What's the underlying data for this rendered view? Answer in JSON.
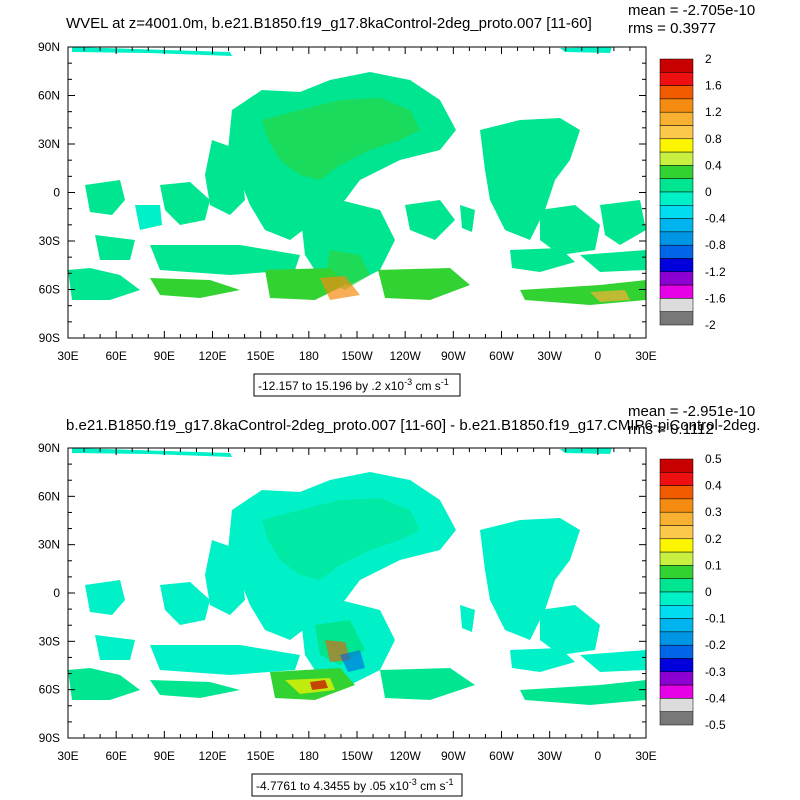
{
  "panels": [
    {
      "title": "WVEL at z=4001.0m, b.e21.B1850.f19_g17.8kaControl-2deg_proto.007 [11-60]",
      "mean_label": "mean = -2.705e-10",
      "rms_label": "rms = 0.3977",
      "range_label": "-12.157 to 15.196 by .2 x10",
      "range_exponent": "-3",
      "range_units": " cm s",
      "range_units_exponent": "-1",
      "colorbar": {
        "labels": [
          "2",
          "1.6",
          "1.2",
          "0.8",
          "0.4",
          "0",
          "-0.4",
          "-0.8",
          "-1.2",
          "-1.6",
          "-2"
        ],
        "colors": [
          "#c80000",
          "#ee1010",
          "#f25a00",
          "#f38c10",
          "#f8b030",
          "#fbc84a",
          "#fbf500",
          "#c8f040",
          "#32d232",
          "#00e690",
          "#00f0c8",
          "#00dcf0",
          "#00b4f0",
          "#0096e6",
          "#0064e6",
          "#0000dc",
          "#8c00d2",
          "#e600e6",
          "#dcdcdc",
          "#787878"
        ]
      }
    },
    {
      "title": "b.e21.B1850.f19_g17.8kaControl-2deg_proto.007 [11-60] - b.e21.B1850.f19_g17.CMIP6-piControl-2deg.",
      "mean_label": "mean = -2.951e-10",
      "rms_label": "rms = 0.1112",
      "range_label": "-4.7761 to 4.3455 by .05 x10",
      "range_exponent": "-3",
      "range_units": " cm s",
      "range_units_exponent": "-1",
      "colorbar": {
        "labels": [
          "0.5",
          "0.4",
          "0.3",
          "0.2",
          "0.1",
          "0",
          "-0.1",
          "-0.2",
          "-0.3",
          "-0.4",
          "-0.5"
        ],
        "colors": [
          "#c80000",
          "#ee1010",
          "#f25a00",
          "#f38c10",
          "#f8b030",
          "#fbc84a",
          "#fbf500",
          "#c8f040",
          "#32d232",
          "#00e690",
          "#00f0c8",
          "#00dcf0",
          "#00b4f0",
          "#0096e6",
          "#0064e6",
          "#0000dc",
          "#8c00d2",
          "#e600e6",
          "#dcdcdc",
          "#787878"
        ]
      }
    }
  ],
  "chart_data": [
    {
      "type": "heatmap",
      "title": "WVEL at z=4001.0m, b.e21.B1850.f19_g17.8kaControl-2deg_proto.007 [11-60]",
      "x_tick_labels": [
        "30E",
        "60E",
        "90E",
        "120E",
        "150E",
        "180",
        "150W",
        "120W",
        "90W",
        "60W",
        "30W",
        "0",
        "30E"
      ],
      "y_tick_labels": [
        "90N",
        "60N",
        "30N",
        "0",
        "30S",
        "60S",
        "90S"
      ],
      "xlim": [
        30,
        390
      ],
      "ylim": [
        -90,
        90
      ],
      "colorbar_levels": [
        "2",
        "1.6",
        "1.2",
        "0.8",
        "0.4",
        "0",
        "-0.4",
        "-0.8",
        "-1.2",
        "-1.6",
        "-2"
      ],
      "mean": "-2.705e-10",
      "rms": "0.3977",
      "range": "-12.157 to 15.196 by .2 x10-3 cm s-1"
    },
    {
      "type": "heatmap",
      "title": "b.e21.B1850.f19_g17.8kaControl-2deg_proto.007 [11-60] - b.e21.B1850.f19_g17.CMIP6-piControl-2deg.",
      "x_tick_labels": [
        "30E",
        "60E",
        "90E",
        "120E",
        "150E",
        "180",
        "150W",
        "120W",
        "90W",
        "60W",
        "30W",
        "0",
        "30E"
      ],
      "y_tick_labels": [
        "90N",
        "60N",
        "30N",
        "0",
        "30S",
        "60S",
        "90S"
      ],
      "xlim": [
        30,
        390
      ],
      "ylim": [
        -90,
        90
      ],
      "colorbar_levels": [
        "0.5",
        "0.4",
        "0.3",
        "0.2",
        "0.1",
        "0",
        "-0.1",
        "-0.2",
        "-0.3",
        "-0.4",
        "-0.5"
      ],
      "mean": "-2.951e-10",
      "rms": "0.1112",
      "range": "-4.7761 to 4.3455 by .05 x10-3 cm s-1"
    }
  ]
}
